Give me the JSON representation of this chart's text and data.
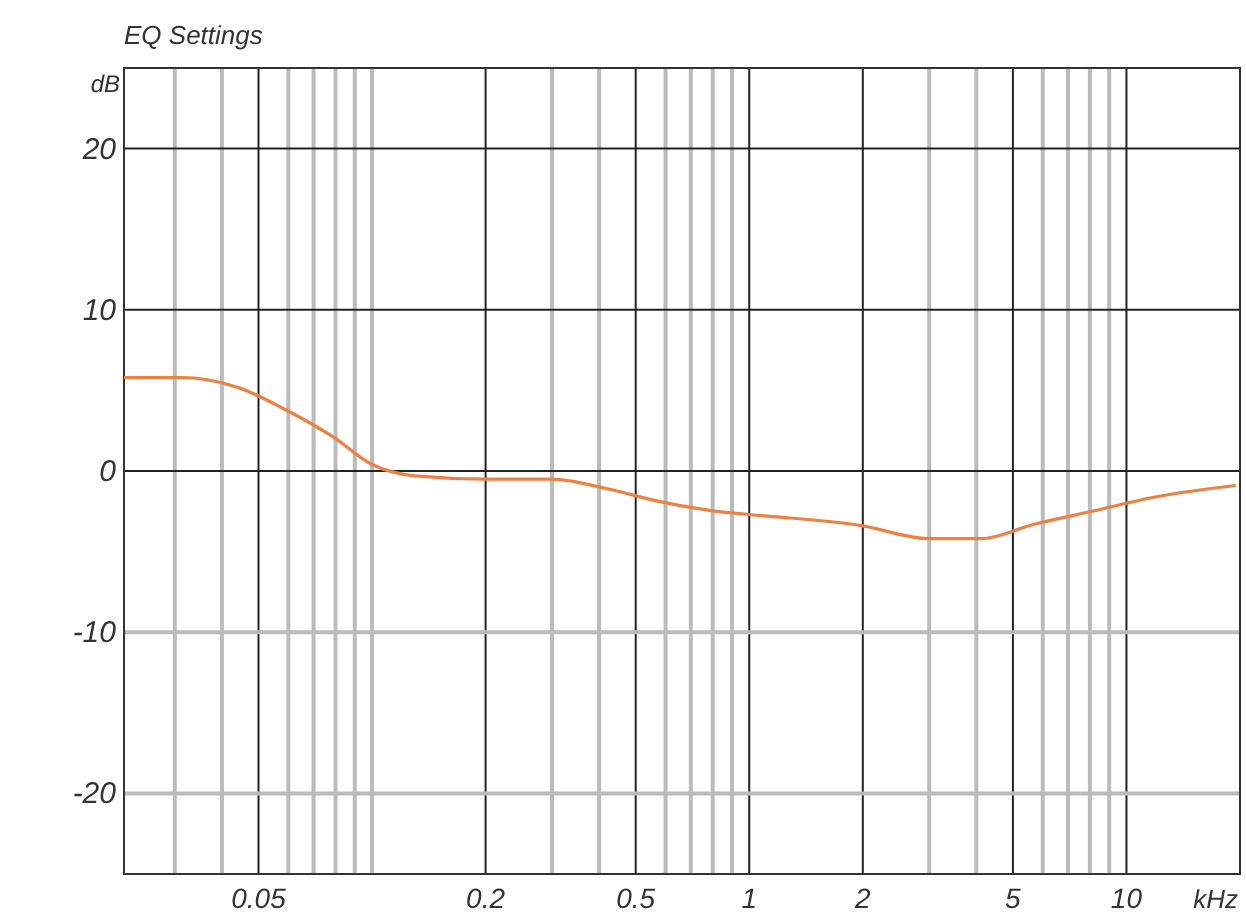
{
  "chart_data": {
    "type": "line",
    "title": "EQ Settings",
    "xlabel": "kHz",
    "ylabel": "dB",
    "log": "x",
    "grid": true,
    "xlim": [
      0.022,
      20
    ],
    "ylim": [
      -25,
      25
    ],
    "xticks": [
      {
        "value": 0.03,
        "label": null
      },
      {
        "value": 0.04,
        "label": null
      },
      0.05,
      {
        "value": 0.06,
        "label": null
      },
      {
        "value": 0.07,
        "label": null
      },
      {
        "value": 0.08,
        "label": null
      },
      {
        "value": 0.09,
        "label": null
      },
      {
        "value": 0.1,
        "label": null
      },
      0.2,
      {
        "value": 0.3,
        "label": null
      },
      {
        "value": 0.4,
        "label": null
      },
      0.5,
      {
        "value": 0.6,
        "label": null
      },
      {
        "value": 0.7,
        "label": null
      },
      {
        "value": 0.8,
        "label": null
      },
      {
        "value": 0.9,
        "label": null
      },
      1,
      2,
      {
        "value": 3,
        "label": null
      },
      {
        "value": 4,
        "label": null
      },
      5,
      {
        "value": 6,
        "label": null
      },
      {
        "value": 7,
        "label": null
      },
      {
        "value": 8,
        "label": null
      },
      {
        "value": 9,
        "label": null
      },
      10
    ],
    "yticks": [
      -20,
      -10,
      0,
      10,
      20
    ],
    "series": [
      {
        "color": "#f08040",
        "x": [
          0.022,
          0.031,
          0.044,
          0.059,
          0.079,
          0.1,
          0.13,
          0.2,
          0.3,
          0.42,
          0.58,
          0.82,
          1,
          2,
          3,
          4.1,
          5.7,
          8.1,
          12,
          19.5
        ],
        "values": [
          5.8,
          5.8,
          5.2,
          3.8,
          2.1,
          0.4,
          -0.3,
          -0.5,
          -0.5,
          -1.1,
          -1.9,
          -2.5,
          -2.7,
          -3.4,
          -4.2,
          -4.2,
          -3.3,
          -2.5,
          -1.6,
          -0.9
        ]
      }
    ]
  }
}
